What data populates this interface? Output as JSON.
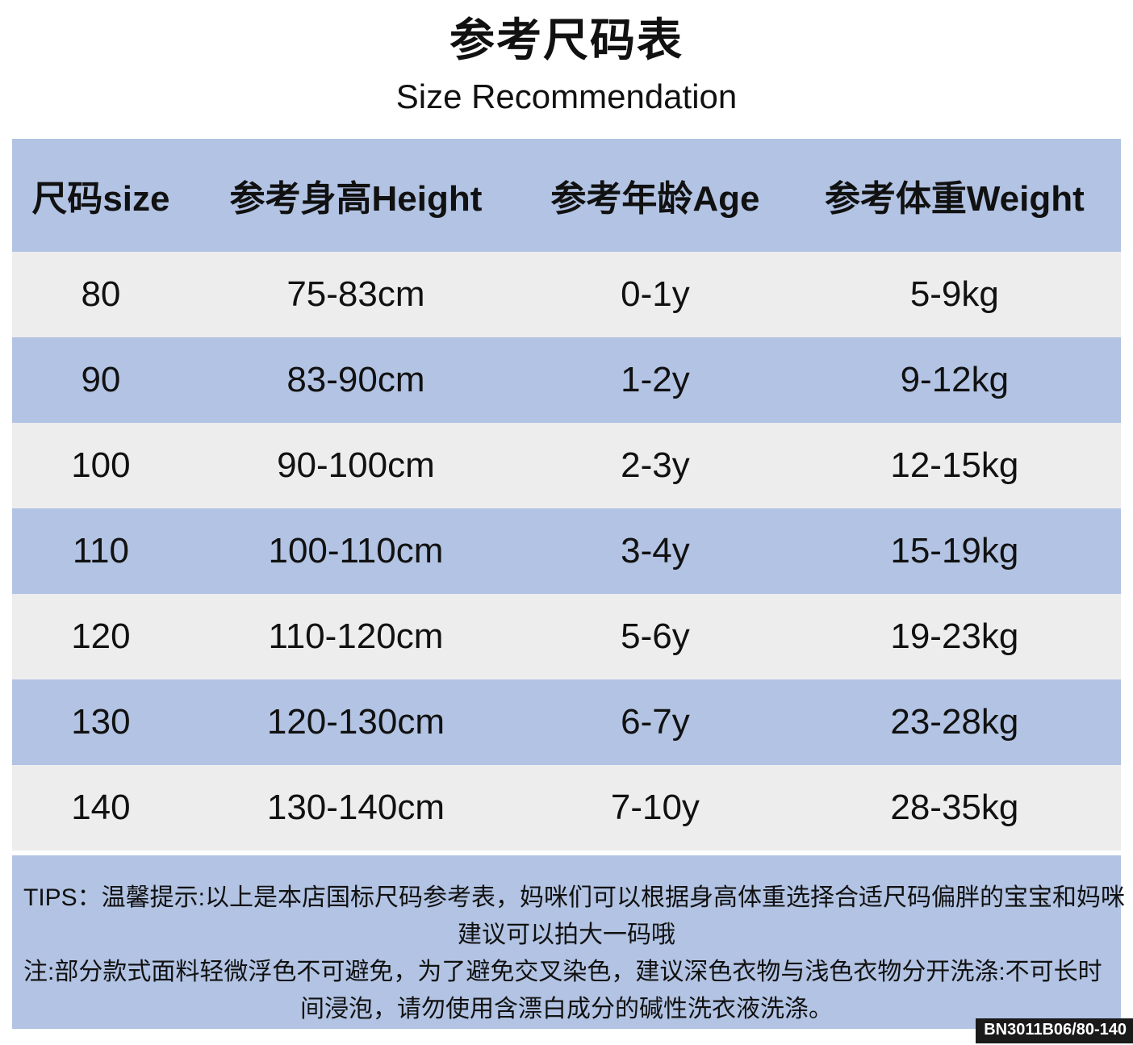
{
  "header": {
    "title": "参考尺码表",
    "subtitle": "Size Recommendation"
  },
  "table": {
    "headers": [
      "尺码size",
      "参考身高Height",
      "参考年龄Age",
      "参考体重Weight"
    ],
    "rows": [
      {
        "size": "80",
        "height": "75-83cm",
        "age": "0-1y",
        "weight": "5-9kg"
      },
      {
        "size": "90",
        "height": "83-90cm",
        "age": "1-2y",
        "weight": "9-12kg"
      },
      {
        "size": "100",
        "height": "90-100cm",
        "age": "2-3y",
        "weight": "12-15kg"
      },
      {
        "size": "110",
        "height": "100-110cm",
        "age": "3-4y",
        "weight": "15-19kg"
      },
      {
        "size": "120",
        "height": "110-120cm",
        "age": "5-6y",
        "weight": "19-23kg"
      },
      {
        "size": "130",
        "height": "120-130cm",
        "age": "6-7y",
        "weight": "23-28kg"
      },
      {
        "size": "140",
        "height": "130-140cm",
        "age": "7-10y",
        "weight": "28-35kg"
      }
    ]
  },
  "tips": {
    "lines": [
      "TIPS：温馨提示:以上是本店国标尺码参考表，妈咪们可以根据身高体重选择合适尺码偏胖的宝宝和妈咪",
      "建议可以拍大一码哦",
      "注:部分款式面料轻微浮色不可避免，为了避免交叉染色，建议深色衣物与浅色衣物分开洗涤:不可长时",
      "间浸泡，请勿使用含漂白成分的碱性洗衣液洗涤。"
    ]
  },
  "footer": {
    "product_code": "BN3011B06/80-140"
  },
  "colors": {
    "band_blue": "#b2c3e3",
    "band_gray": "#eeedee",
    "text_black": "#111111",
    "code_bg": "#1a1a1a",
    "code_text": "#ffffff"
  }
}
